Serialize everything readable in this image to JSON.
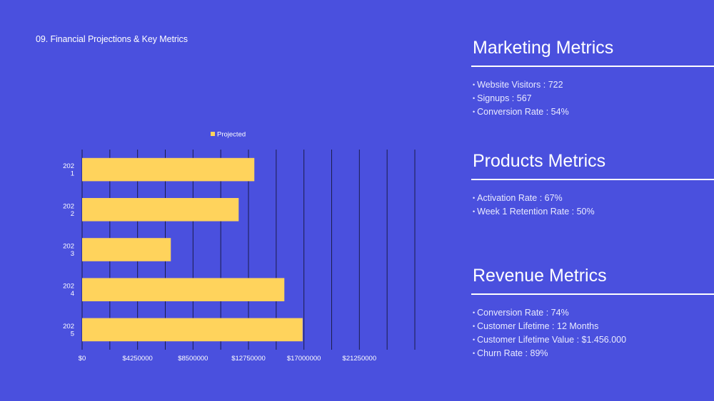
{
  "slide": {
    "title": "09. Financial Projections & Key Metrics"
  },
  "colors": {
    "background": "#4a50de",
    "bar": "#ffd35c",
    "grid": "#1a1c4a",
    "text": "#ffffff"
  },
  "chart_data": {
    "type": "bar",
    "orientation": "horizontal",
    "categories": [
      "202\n1",
      "202\n2",
      "202\n3",
      "202\n4",
      "202\n5"
    ],
    "series": [
      {
        "name": "Projected",
        "values": [
          13200000,
          12000000,
          6800000,
          15500000,
          16900000
        ]
      }
    ],
    "xlim": [
      0,
      25500000
    ],
    "x_ticks": [
      0,
      4250000,
      8500000,
      12750000,
      17000000,
      21250000
    ],
    "x_tick_labels": [
      "$0",
      "$4250000",
      "$8500000",
      "$12750000",
      "$17000000",
      "$21250000"
    ],
    "grid": true,
    "legend": "top"
  },
  "panels": {
    "marketing": {
      "title": "Marketing Metrics",
      "items": [
        "Website Visitors : 722",
        "Signups : 567",
        "Conversion Rate : 54%"
      ]
    },
    "products": {
      "title": "Products Metrics",
      "items": [
        "Activation Rate : 67%",
        "Week 1 Retention Rate : 50%"
      ]
    },
    "revenue": {
      "title": "Revenue Metrics",
      "items": [
        "Conversion Rate : 74%",
        "Customer Lifetime : 12 Months",
        "Customer Lifetime Value : $1.456.000",
        "Churn Rate : 89%"
      ]
    }
  }
}
